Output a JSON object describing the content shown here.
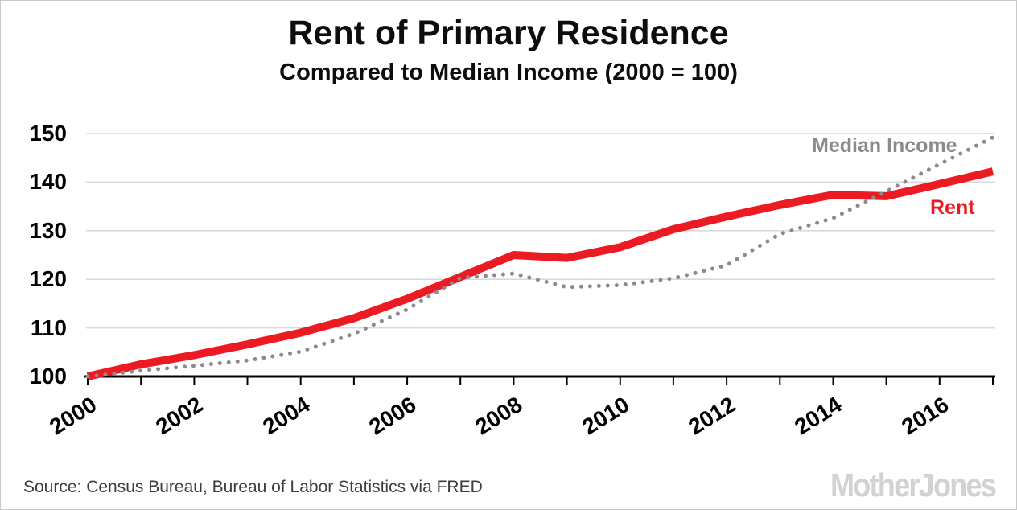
{
  "header": {
    "title": "Rent of Primary Residence",
    "subtitle": "Compared to Median Income (2000 = 100)"
  },
  "chart_data": {
    "type": "line",
    "title": "Rent of Primary Residence",
    "subtitle": "Compared to Median Income (2000 = 100)",
    "x": [
      2000,
      2001,
      2002,
      2003,
      2004,
      2005,
      2006,
      2007,
      2008,
      2009,
      2010,
      2011,
      2012,
      2013,
      2014,
      2015,
      2016,
      2017
    ],
    "series": [
      {
        "name": "Rent",
        "color": "#ec1b23",
        "line_style": "solid",
        "values": [
          100,
          102.5,
          104.4,
          106.6,
          109.0,
          112.0,
          116.0,
          120.5,
          125.0,
          124.4,
          126.6,
          130.3,
          132.9,
          135.3,
          137.4,
          137.1,
          139.6,
          142.2
        ]
      },
      {
        "name": "Median Income",
        "color": "#8b8b8b",
        "line_style": "dotted",
        "values": [
          100,
          101.2,
          102.2,
          103.3,
          105.1,
          108.8,
          113.8,
          120.3,
          121.2,
          118.4,
          118.8,
          120.2,
          122.9,
          129.3,
          132.6,
          138.1,
          143.7,
          149.2
        ]
      }
    ],
    "xlim": [
      2000,
      2017
    ],
    "ylim": [
      100,
      150
    ],
    "y_ticks": [
      100,
      110,
      120,
      130,
      140,
      150
    ],
    "x_minor_ticks": [
      2000,
      2001,
      2002,
      2003,
      2004,
      2005,
      2006,
      2007,
      2008,
      2009,
      2010,
      2011,
      2012,
      2013,
      2014,
      2015,
      2016,
      2017
    ],
    "x_tick_labels": [
      "2000",
      "2002",
      "2004",
      "2006",
      "2008",
      "2010",
      "2012",
      "2014",
      "2016"
    ],
    "grid": "horizontal",
    "legend_position": "inline-labels",
    "colors": {
      "rent": "#ec1b23",
      "median_income": "#8b8b8b",
      "gridline": "#d9d9d9",
      "axis": "#000000"
    }
  },
  "footer": {
    "source": "Source: Census Bureau, Bureau of Labor Statistics via FRED",
    "logo": "MotherJones"
  }
}
